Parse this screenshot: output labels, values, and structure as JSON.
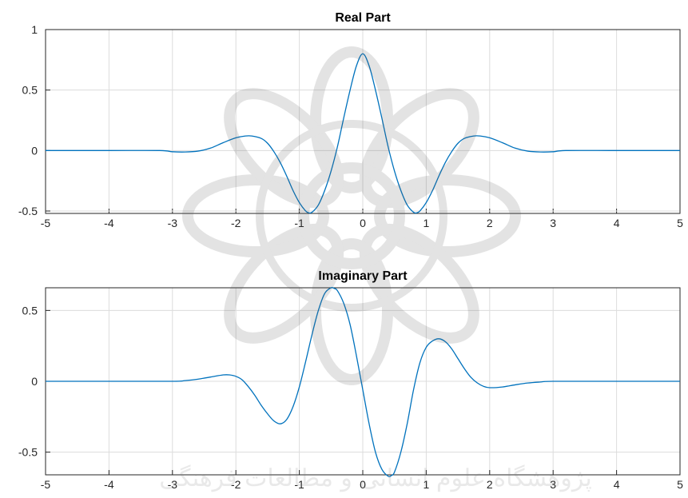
{
  "figure": {
    "line_color": "#0072BD",
    "watermark_text": "پژوهشگاه علوم انسانی و مطالعات فرهنگی"
  },
  "chart_data": [
    {
      "type": "line",
      "title": "Real Part",
      "xlabel": "",
      "ylabel": "",
      "xlim": [
        -5,
        5
      ],
      "ylim": [
        -0.52,
        1
      ],
      "xticks": [
        "-5",
        "-4",
        "-3",
        "-2",
        "-1",
        "0",
        "1",
        "2",
        "3",
        "4",
        "5"
      ],
      "yticks": [
        "1",
        "0.5",
        "0",
        "-0.5"
      ],
      "ytick_values": [
        1,
        0.5,
        0,
        -0.5
      ],
      "grid": true,
      "series": [
        {
          "color": "#0072BD",
          "x": [
            -5,
            -4,
            -3.2,
            -3,
            -2.8,
            -2.6,
            -2.4,
            -2.2,
            -2.0,
            -1.85,
            -1.75,
            -1.6,
            -1.5,
            -1.4,
            -1.3,
            -1.2,
            -1.1,
            -1.0,
            -0.9,
            -0.85,
            -0.8,
            -0.7,
            -0.6,
            -0.5,
            -0.4,
            -0.3,
            -0.2,
            -0.1,
            0,
            0.1,
            0.2,
            0.3,
            0.4,
            0.5,
            0.6,
            0.7,
            0.8,
            0.85,
            0.9,
            1.0,
            1.1,
            1.2,
            1.3,
            1.4,
            1.5,
            1.6,
            1.75,
            1.85,
            2.0,
            2.2,
            2.4,
            2.6,
            2.8,
            3.0,
            3.2,
            4,
            5
          ],
          "y": [
            0,
            0,
            0,
            -0.01,
            -0.012,
            -0.005,
            0.02,
            0.065,
            0.105,
            0.12,
            0.12,
            0.1,
            0.06,
            -0.01,
            -0.1,
            -0.21,
            -0.33,
            -0.43,
            -0.5,
            -0.515,
            -0.51,
            -0.45,
            -0.33,
            -0.17,
            0.03,
            0.27,
            0.5,
            0.7,
            0.8,
            0.7,
            0.5,
            0.27,
            0.03,
            -0.17,
            -0.33,
            -0.45,
            -0.51,
            -0.515,
            -0.5,
            -0.43,
            -0.33,
            -0.21,
            -0.1,
            -0.01,
            0.06,
            0.1,
            0.12,
            0.12,
            0.105,
            0.065,
            0.02,
            -0.005,
            -0.012,
            -0.01,
            0,
            0,
            0
          ]
        }
      ]
    },
    {
      "type": "line",
      "title": "Imaginary Part",
      "xlabel": "",
      "ylabel": "",
      "xlim": [
        -5,
        5
      ],
      "ylim": [
        -0.66,
        0.66
      ],
      "xticks": [
        "-5",
        "-4",
        "-3",
        "-2",
        "-1",
        "0",
        "1",
        "2",
        "3",
        "4",
        "5"
      ],
      "yticks": [
        "0.5",
        "0",
        "-0.5"
      ],
      "ytick_values": [
        0.5,
        0,
        -0.5
      ],
      "grid": true,
      "series": [
        {
          "color": "#0072BD",
          "x": [
            -5,
            -4,
            -3.0,
            -2.8,
            -2.6,
            -2.4,
            -2.2,
            -2.1,
            -2.0,
            -1.9,
            -1.8,
            -1.7,
            -1.6,
            -1.5,
            -1.4,
            -1.3,
            -1.2,
            -1.1,
            -1.0,
            -0.9,
            -0.8,
            -0.7,
            -0.6,
            -0.5,
            -0.45,
            -0.4,
            -0.3,
            -0.2,
            -0.1,
            0,
            0.1,
            0.2,
            0.3,
            0.4,
            0.45,
            0.5,
            0.6,
            0.7,
            0.8,
            0.9,
            1.0,
            1.1,
            1.2,
            1.3,
            1.4,
            1.5,
            1.6,
            1.7,
            1.8,
            1.9,
            2.0,
            2.2,
            2.4,
            2.6,
            2.8,
            3.0,
            4,
            5
          ],
          "y": [
            0,
            0,
            0,
            0.005,
            0.015,
            0.03,
            0.045,
            0.045,
            0.035,
            0.01,
            -0.04,
            -0.1,
            -0.17,
            -0.23,
            -0.28,
            -0.3,
            -0.27,
            -0.18,
            -0.04,
            0.14,
            0.33,
            0.5,
            0.62,
            0.66,
            0.655,
            0.64,
            0.55,
            0.4,
            0.18,
            -0.06,
            -0.3,
            -0.5,
            -0.62,
            -0.67,
            -0.665,
            -0.64,
            -0.5,
            -0.3,
            -0.06,
            0.13,
            0.24,
            0.285,
            0.3,
            0.28,
            0.23,
            0.16,
            0.09,
            0.03,
            -0.01,
            -0.035,
            -0.045,
            -0.04,
            -0.025,
            -0.012,
            -0.005,
            0,
            0,
            0
          ]
        }
      ]
    }
  ]
}
